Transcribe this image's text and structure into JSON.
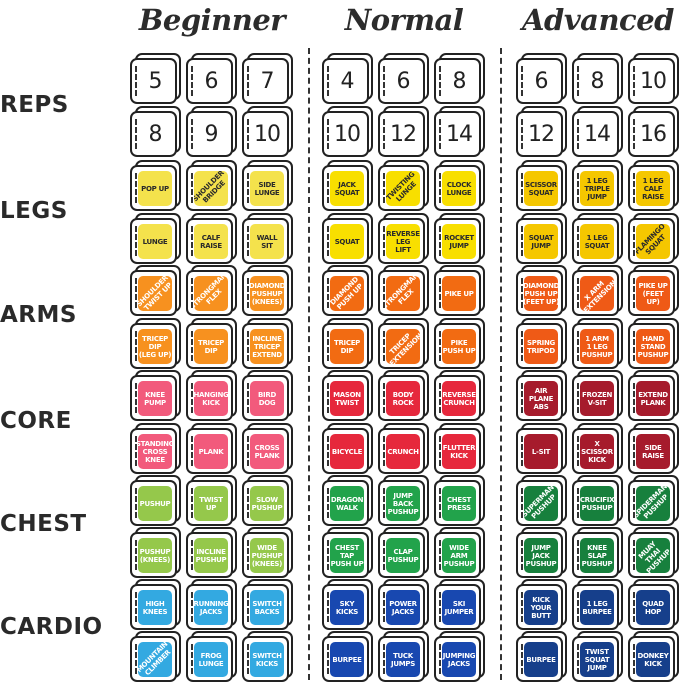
{
  "levels": [
    {
      "name": "Beginner",
      "reps": [
        [
          "5",
          "6",
          "7"
        ],
        [
          "8",
          "9",
          "10"
        ]
      ],
      "colors": {
        "legs": "#f4e24c",
        "arms": "#f7911f",
        "core": "#f25a7c",
        "chest": "#95c84b",
        "cardio": "#33a9e1"
      },
      "exercises": {
        "legs": [
          [
            "POP UP",
            "SHOULDER\nBRIDGE*",
            "SIDE\nLUNGE"
          ],
          [
            "LUNGE",
            "CALF\nRAISE",
            "WALL\nSIT"
          ]
        ],
        "arms": [
          [
            "SHOULDER\nTWIST UP*",
            "STRONGMAN\nFLEX*",
            "DIAMOND\nPUSHUP\n(KNEES)"
          ],
          [
            "TRICEP\nDIP\n(LEG UP)",
            "TRICEP\nDIP",
            "INCLINE\nTRICEP\nEXTEND"
          ]
        ],
        "core": [
          [
            "KNEE\nPUMP",
            "HANGING\nKICK",
            "BIRD\nDOG"
          ],
          [
            "STANDING\nCROSS\nKNEE",
            "PLANK",
            "CROSS\nPLANK"
          ]
        ],
        "chest": [
          [
            "PUSHUP",
            "TWIST\nUP",
            "SLOW\nPUSHUP"
          ],
          [
            "PUSHUP\n(KNEES)",
            "INCLINE\nPUSHUP",
            "WIDE\nPUSHUP\n(KNEES)"
          ]
        ],
        "cardio": [
          [
            "HIGH\nKNEES",
            "RUNNING\nJACKS",
            "SWITCH\nBACKS"
          ],
          [
            "MOUNTAIN\nCLIMBER*",
            "FROG\nLUNGE",
            "SWITCH\nKICKS"
          ]
        ]
      }
    },
    {
      "name": "Normal",
      "reps": [
        [
          "4",
          "6",
          "8"
        ],
        [
          "10",
          "12",
          "14"
        ]
      ],
      "colors": {
        "legs": "#f8df00",
        "arms": "#f26b12",
        "core": "#e6283c",
        "chest": "#22a34b",
        "cardio": "#1848b0"
      },
      "exercises": {
        "legs": [
          [
            "JACK\nSQUAT",
            "TWISTING\nLUNGE*",
            "CLOCK\nLUNGE"
          ],
          [
            "SQUAT",
            "REVERSE\nLEG\nLIFT",
            "ROCKET\nJUMP"
          ]
        ],
        "arms": [
          [
            "DIAMOND\nPUSH UP*",
            "STRONGMAN\nFLEX*",
            "PIKE UP"
          ],
          [
            "TRICEP\nDIP",
            "TRICEP\nEXTENSION*",
            "PIKE\nPUSH UP"
          ]
        ],
        "core": [
          [
            "MASON\nTWIST",
            "BODY\nROCK",
            "REVERSE\nCRUNCH"
          ],
          [
            "BICYCLE",
            "CRUNCH",
            "FLUTTER\nKICK"
          ]
        ],
        "chest": [
          [
            "DRAGON\nWALK",
            "JUMP\nBACK\nPUSHUP",
            "CHEST\nPRESS"
          ],
          [
            "CHEST\nTAP\nPUSH UP",
            "CLAP\nPUSHUP",
            "WIDE\nARM\nPUSHUP"
          ]
        ],
        "cardio": [
          [
            "SKY\nKICKS",
            "POWER\nJACKS",
            "SKI\nJUMPER"
          ],
          [
            "BURPEE",
            "TUCK\nJUMPS",
            "JUMPING\nJACKS"
          ]
        ]
      }
    },
    {
      "name": "Advanced",
      "reps": [
        [
          "6",
          "8",
          "10"
        ],
        [
          "12",
          "14",
          "16"
        ]
      ],
      "colors": {
        "legs": "#f5c700",
        "arms": "#ef5a16",
        "core": "#a61b2c",
        "chest": "#17803d",
        "cardio": "#163f8b"
      },
      "exercises": {
        "legs": [
          [
            "SCISSOR\nSQUAT",
            "1 LEG\nTRIPLE\nJUMP",
            "1 LEG\nCALF\nRAISE"
          ],
          [
            "SQUAT\nJUMP",
            "1 LEG\nSQUAT",
            "FLAMINGO\nSQUAT*"
          ]
        ],
        "arms": [
          [
            "DIAMOND\nPUSH UP\n(FEET UP)",
            "X ARM\nEXTENSION*",
            "PIKE UP\n(FEET UP)"
          ],
          [
            "SPRING\nTRIPOD",
            "1 ARM\n1 LEG\nPUSHUP",
            "HAND\nSTAND\nPUSHUP"
          ]
        ],
        "core": [
          [
            "AIR\nPLANE\nABS",
            "FROZEN\nV-SIT",
            "EXTEND\nPLANK"
          ],
          [
            "L-SIT",
            "X\nSCISSOR\nKICK",
            "SIDE\nRAISE"
          ]
        ],
        "chest": [
          [
            "SUPERMAN\nPUSHUP*",
            "CRUCIFIX\nPUSHUP",
            "SPIDERMAN\nPUSHUP*"
          ],
          [
            "JUMP\nJACK\nPUSHUP",
            "KNEE\nSLAP\nPUSHUP",
            "MUAY THAI\nPUSHUP*"
          ]
        ],
        "cardio": [
          [
            "KICK\nYOUR\nBUTT",
            "1 LEG\nBURPEE",
            "QUAD\nHOP"
          ],
          [
            "BURPEE",
            "TWIST\nSQUAT\nJUMP",
            "DONKEY\nKICK"
          ]
        ]
      }
    }
  ],
  "categories": [
    {
      "key": "reps",
      "label": "REPS"
    },
    {
      "key": "legs",
      "label": "LEGS"
    },
    {
      "key": "arms",
      "label": "ARMS"
    },
    {
      "key": "core",
      "label": "CORE"
    },
    {
      "key": "chest",
      "label": "CHEST"
    },
    {
      "key": "cardio",
      "label": "CARDIO"
    }
  ],
  "text_colors": {
    "legs": "#2a2a2a",
    "other": "#ffffff"
  }
}
